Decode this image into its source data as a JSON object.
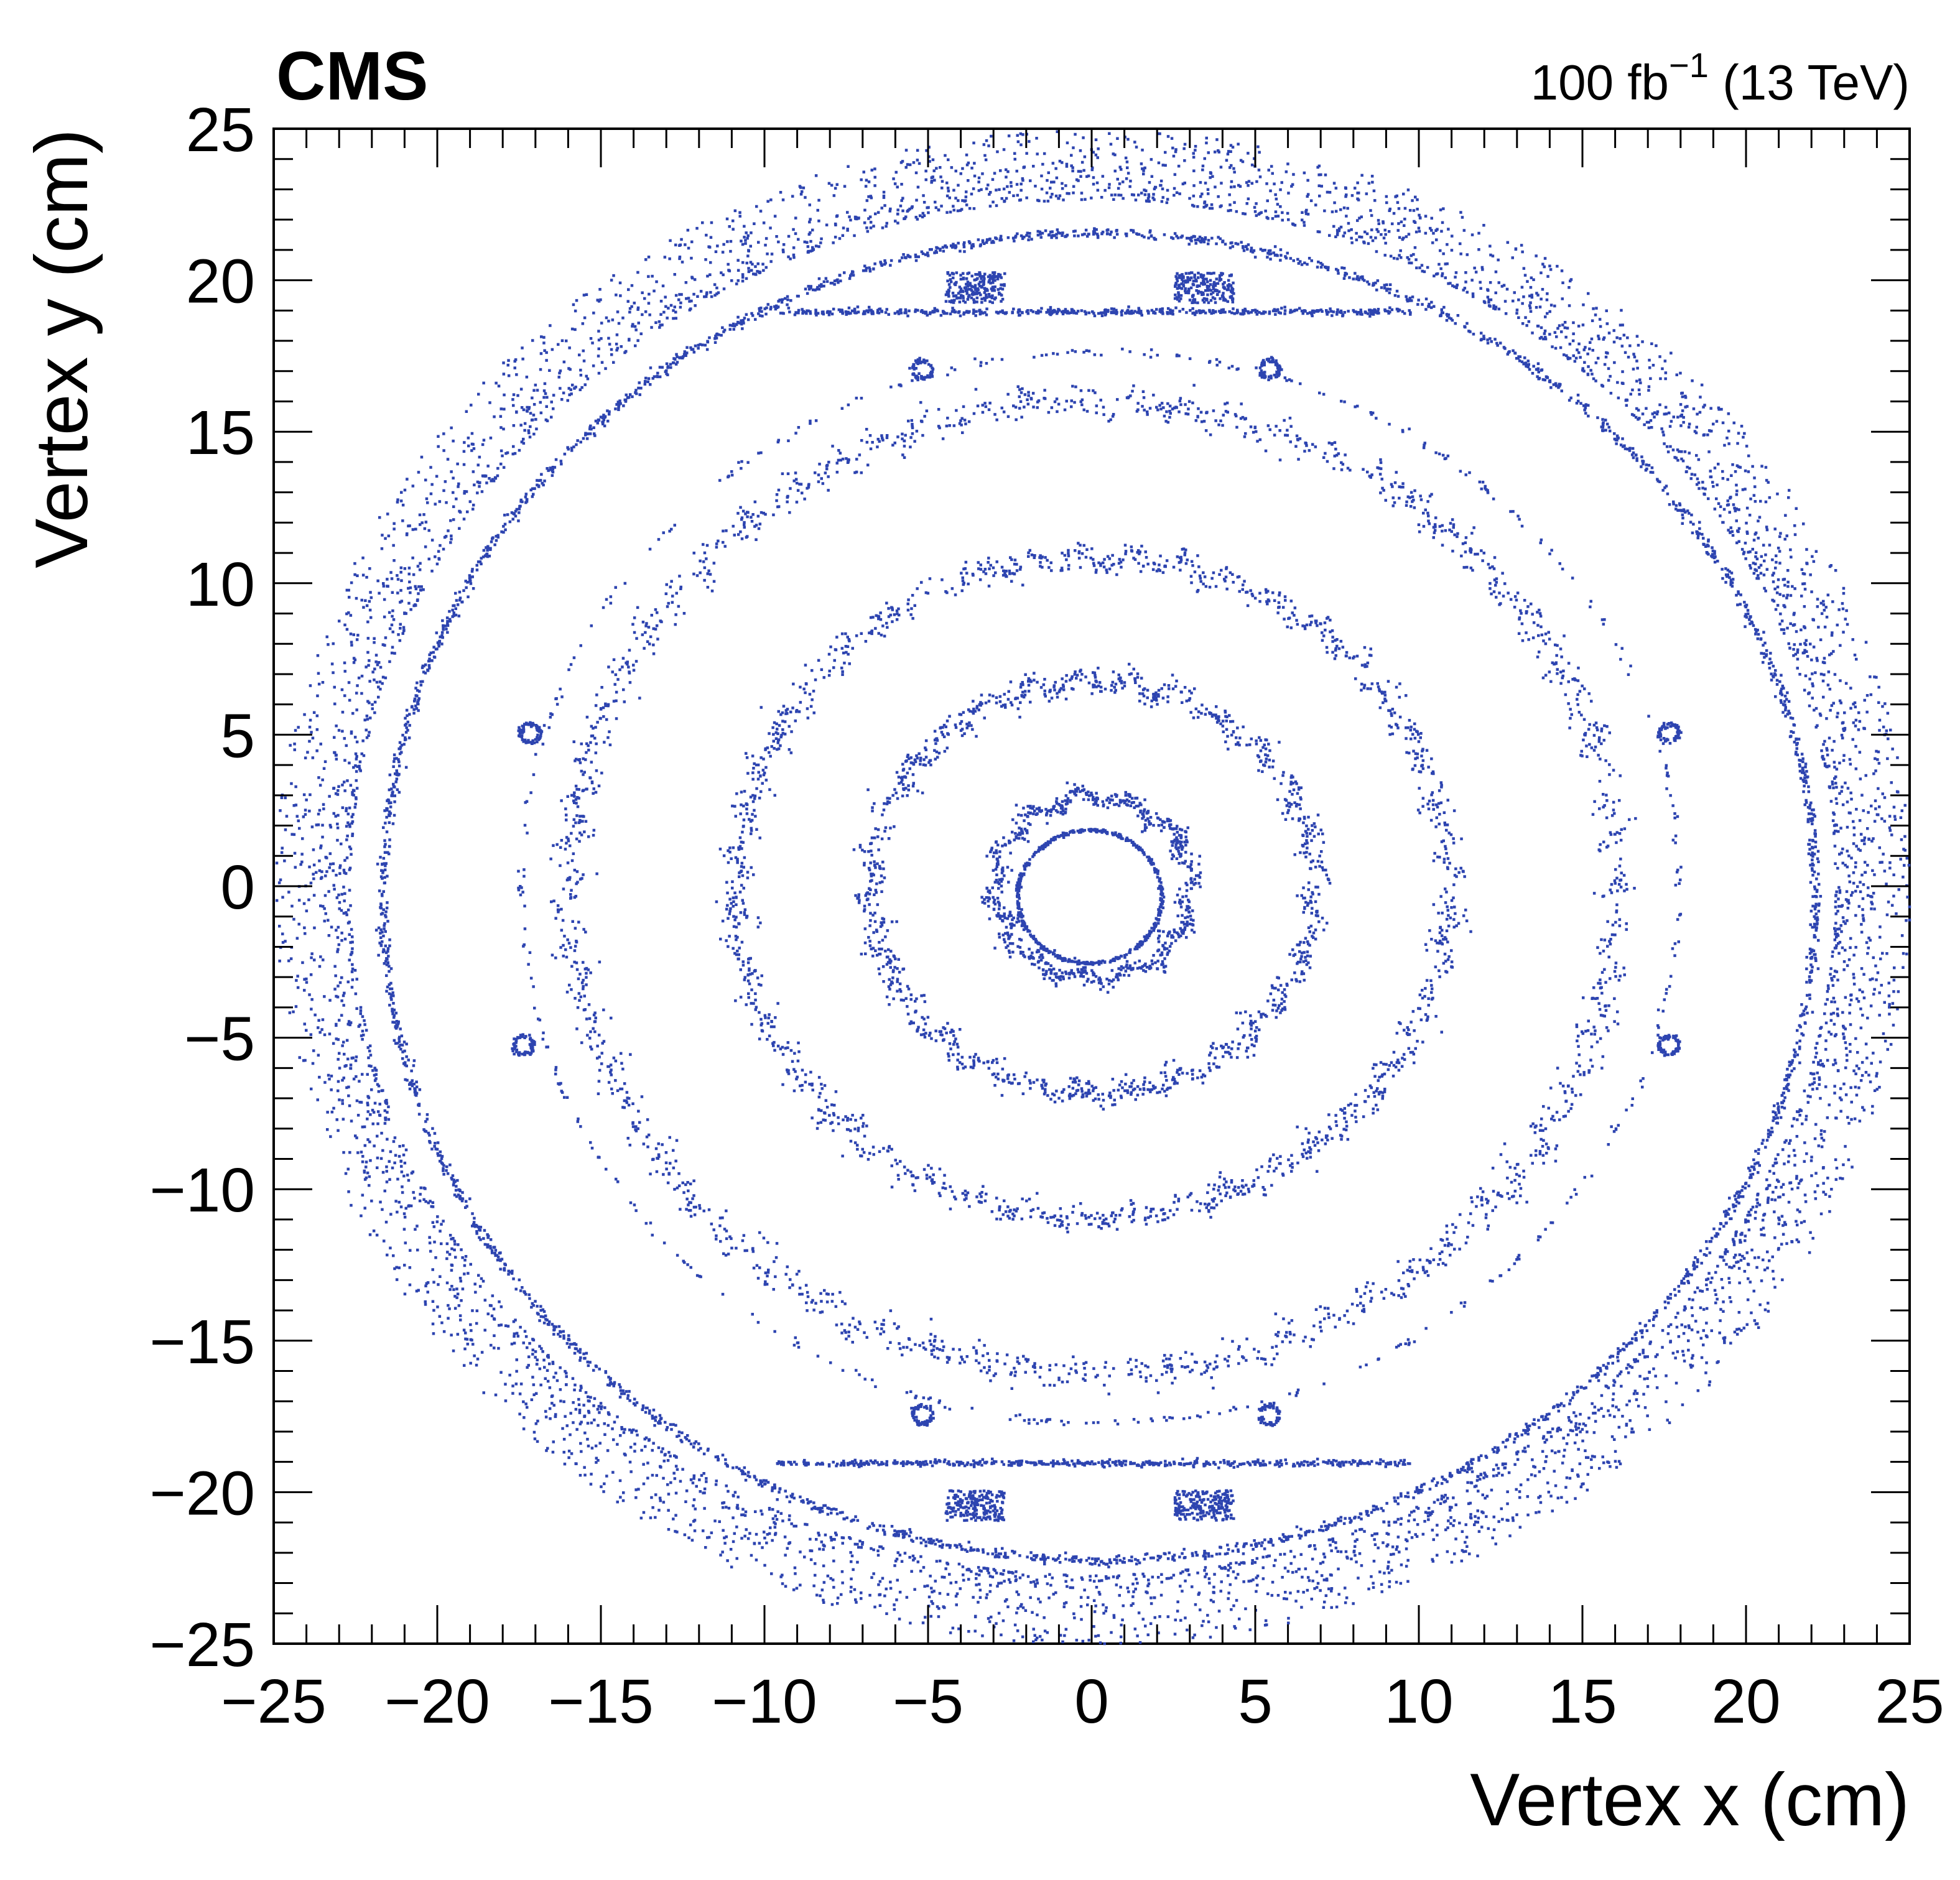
{
  "chart_data": {
    "type": "scatter",
    "title": "",
    "experiment_label": "CMS",
    "lumi_value": "100 fb",
    "lumi_exponent": "−1",
    "lumi_energy": "(13 TeV)",
    "xlabel": "Vertex x (cm)",
    "ylabel": "Vertex y (cm)",
    "xlim": [
      -25,
      25
    ],
    "ylim": [
      -25,
      25
    ],
    "x_ticks": [
      -25,
      -20,
      -15,
      -10,
      -5,
      0,
      5,
      10,
      15,
      20,
      25
    ],
    "y_ticks": [
      -25,
      -20,
      -15,
      -10,
      -5,
      0,
      5,
      10,
      15,
      20,
      25
    ],
    "x_tick_labels": [
      "−25",
      "−20",
      "−15",
      "−10",
      "−5",
      "0",
      "5",
      "10",
      "15",
      "20",
      "25"
    ],
    "y_tick_labels": [
      "−25",
      "−20",
      "−15",
      "−10",
      "−5",
      "0",
      "5",
      "10",
      "15",
      "20",
      "25"
    ],
    "marker_color": "#2d44b0",
    "series": [
      {
        "name": "beam pipe",
        "shape": "ring",
        "center": [
          -0.1,
          -0.3
        ],
        "radius": 2.2,
        "spread": 0.03,
        "n": 500,
        "bumps": 0
      },
      {
        "name": "pixel layer 1",
        "shape": "ring",
        "center": [
          0,
          0
        ],
        "radius": 3.0,
        "spread": 0.15,
        "n": 700,
        "bumps": 12
      },
      {
        "name": "pixel layer 2",
        "shape": "ring",
        "center": [
          0,
          0
        ],
        "radius": 6.8,
        "spread": 0.2,
        "n": 1100,
        "bumps": 28
      },
      {
        "name": "pixel layer 3",
        "shape": "ring",
        "center": [
          0,
          0
        ],
        "radius": 10.9,
        "spread": 0.22,
        "n": 1400,
        "bumps": 44
      },
      {
        "name": "pixel layer 4",
        "shape": "ring",
        "center": [
          0,
          0
        ],
        "radius": 16.0,
        "spread": 0.25,
        "n": 1700,
        "bumps": 64
      },
      {
        "name": "support tube",
        "shape": "ring",
        "center": [
          0.2,
          0
        ],
        "radius": 17.7,
        "spread": 0.06,
        "n": 400,
        "bumps": 0
      },
      {
        "name": "outer support cylinder",
        "shape": "ring",
        "center": [
          0.2,
          -0.3
        ],
        "radius": 21.9,
        "spread": 0.08,
        "n": 2600,
        "bumps": 0
      },
      {
        "name": "rail top",
        "shape": "line",
        "x": [
          -9.7,
          9.7
        ],
        "y": 19.0,
        "spread": 0.05,
        "n": 500
      },
      {
        "name": "rail bottom",
        "shape": "line",
        "x": [
          -9.7,
          9.7
        ],
        "y": -19.0,
        "spread": 0.05,
        "n": 500
      },
      {
        "name": "rail blocks",
        "shape": "blocks",
        "centers": [
          [
            -3.6,
            19.8
          ],
          [
            3.4,
            19.8
          ],
          [
            -3.6,
            -20.4
          ],
          [
            3.4,
            -20.4
          ]
        ],
        "size": [
          1.8,
          1.0
        ],
        "n": 200
      },
      {
        "name": "small loops",
        "shape": "loops",
        "centers": [
          [
            -5.2,
            17.1
          ],
          [
            5.4,
            17.1
          ],
          [
            -17.2,
            5.1
          ],
          [
            17.6,
            5.1
          ],
          [
            -17.4,
            -5.2
          ],
          [
            17.6,
            -5.2
          ],
          [
            -5.2,
            -17.4
          ],
          [
            5.4,
            -17.4
          ]
        ],
        "radius": 0.3,
        "n": 70
      },
      {
        "name": "diffuse outer material",
        "shape": "band",
        "center": [
          0,
          0
        ],
        "r_min": 22.7,
        "r_max": 25.0,
        "n": 5000
      }
    ]
  }
}
